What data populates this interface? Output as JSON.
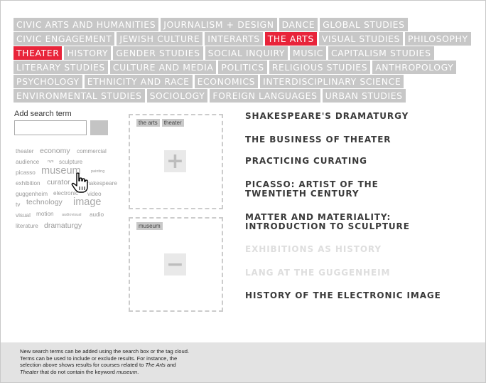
{
  "tags": [
    {
      "label": "Civic Arts and Humanities",
      "active": false
    },
    {
      "label": "Journalism + Design",
      "active": false
    },
    {
      "label": "Dance",
      "active": false
    },
    {
      "label": "Global Studies",
      "active": false
    },
    {
      "label": "Civic Engagement",
      "active": false
    },
    {
      "label": "Jewish Culture",
      "active": false
    },
    {
      "label": "Interarts",
      "active": false
    },
    {
      "label": "The Arts",
      "active": true
    },
    {
      "label": "Visual Studies",
      "active": false
    },
    {
      "label": "Philosophy",
      "active": false
    },
    {
      "label": "Theater",
      "active": true
    },
    {
      "label": "History",
      "active": false
    },
    {
      "label": "Gender Studies",
      "active": false
    },
    {
      "label": "Social Inquiry",
      "active": false
    },
    {
      "label": "Music",
      "active": false
    },
    {
      "label": "Capitalism Studies",
      "active": false
    },
    {
      "label": "Literary Studies",
      "active": false
    },
    {
      "label": "Culture and Media",
      "active": false
    },
    {
      "label": "Politics",
      "active": false
    },
    {
      "label": "Religious Studies",
      "active": false
    },
    {
      "label": "Anthropology",
      "active": false
    },
    {
      "label": "Psychology",
      "active": false
    },
    {
      "label": "Ethnicity and Race",
      "active": false
    },
    {
      "label": "Economics",
      "active": false
    },
    {
      "label": "Interdisciplinary Science",
      "active": false
    },
    {
      "label": "Environmental Studies",
      "active": false
    },
    {
      "label": "Sociology",
      "active": false
    },
    {
      "label": "Foreign Languages",
      "active": false
    },
    {
      "label": "Urban Studies",
      "active": false
    }
  ],
  "search": {
    "label": "Add search term",
    "value": ""
  },
  "cloud": [
    {
      "word": "theater",
      "size": "small"
    },
    {
      "word": "economy",
      "size": "medium"
    },
    {
      "word": "commercial",
      "size": "small"
    },
    {
      "word": "audience",
      "size": "small"
    },
    {
      "word": "nys",
      "size": "tiny"
    },
    {
      "word": "sculpture",
      "size": "small"
    },
    {
      "word": "picasso",
      "size": "small"
    },
    {
      "word": "museum",
      "size": "large"
    },
    {
      "word": "painting",
      "size": "tiny"
    },
    {
      "word": "exhibition",
      "size": "small"
    },
    {
      "word": "curator",
      "size": "medium"
    },
    {
      "word": "shakespeare",
      "size": "small"
    },
    {
      "word": "guggenheim",
      "size": "small"
    },
    {
      "word": "electronic",
      "size": "small"
    },
    {
      "word": "video",
      "size": "small"
    },
    {
      "word": "tv",
      "size": "small"
    },
    {
      "word": "technology",
      "size": "medium"
    },
    {
      "word": "image",
      "size": "large"
    },
    {
      "word": "visual",
      "size": "small"
    },
    {
      "word": "motion",
      "size": "small"
    },
    {
      "word": "audiovisual",
      "size": "tiny"
    },
    {
      "word": "audio",
      "size": "small"
    },
    {
      "word": "literature",
      "size": "small"
    },
    {
      "word": "dramaturgy",
      "size": "medium"
    }
  ],
  "include_box": {
    "chips": [
      "the arts",
      "theater"
    ],
    "action_symbol": "+"
  },
  "exclude_box": {
    "chips": [
      "museum"
    ],
    "action_symbol": "−"
  },
  "courses": [
    {
      "line1": "Shakespeare's Dramaturgy",
      "line2": "",
      "dim": false
    },
    {
      "line1": "The Business of Theater",
      "line2": "",
      "dim": false
    },
    {
      "line1": "Practicing Curating",
      "line2": "",
      "dim": false
    },
    {
      "line1": "Picasso: Artist of the",
      "line2": "Twentieth Century",
      "dim": false
    },
    {
      "line1": "Matter and Materiality:",
      "line2": "Introduction to Sculpture",
      "dim": false
    },
    {
      "line1": "Exhibitions as History",
      "line2": "",
      "dim": true
    },
    {
      "line1": "Lang at the Guggenheim",
      "line2": "",
      "dim": true
    },
    {
      "line1": "History of the Electronic Image",
      "line2": "",
      "dim": false
    }
  ],
  "footer": {
    "line1": "New search terms can be added using the search box or the tag cloud.",
    "line2": "Terms can be used to include or exclude results. For instance, the",
    "line3": "selection above shows results for courses related to ",
    "em1": "The Arts",
    "and": " and",
    "em2": "Theater",
    "line4": " that do not contain the keyword ",
    "em3": "museum",
    "end": "."
  },
  "colors": {
    "tag_bg": "#c7c7c7",
    "tag_active": "#e8243a",
    "course_text": "#3a3a3a",
    "course_dim": "#dedede",
    "footer_bg": "#e3e3e3"
  }
}
